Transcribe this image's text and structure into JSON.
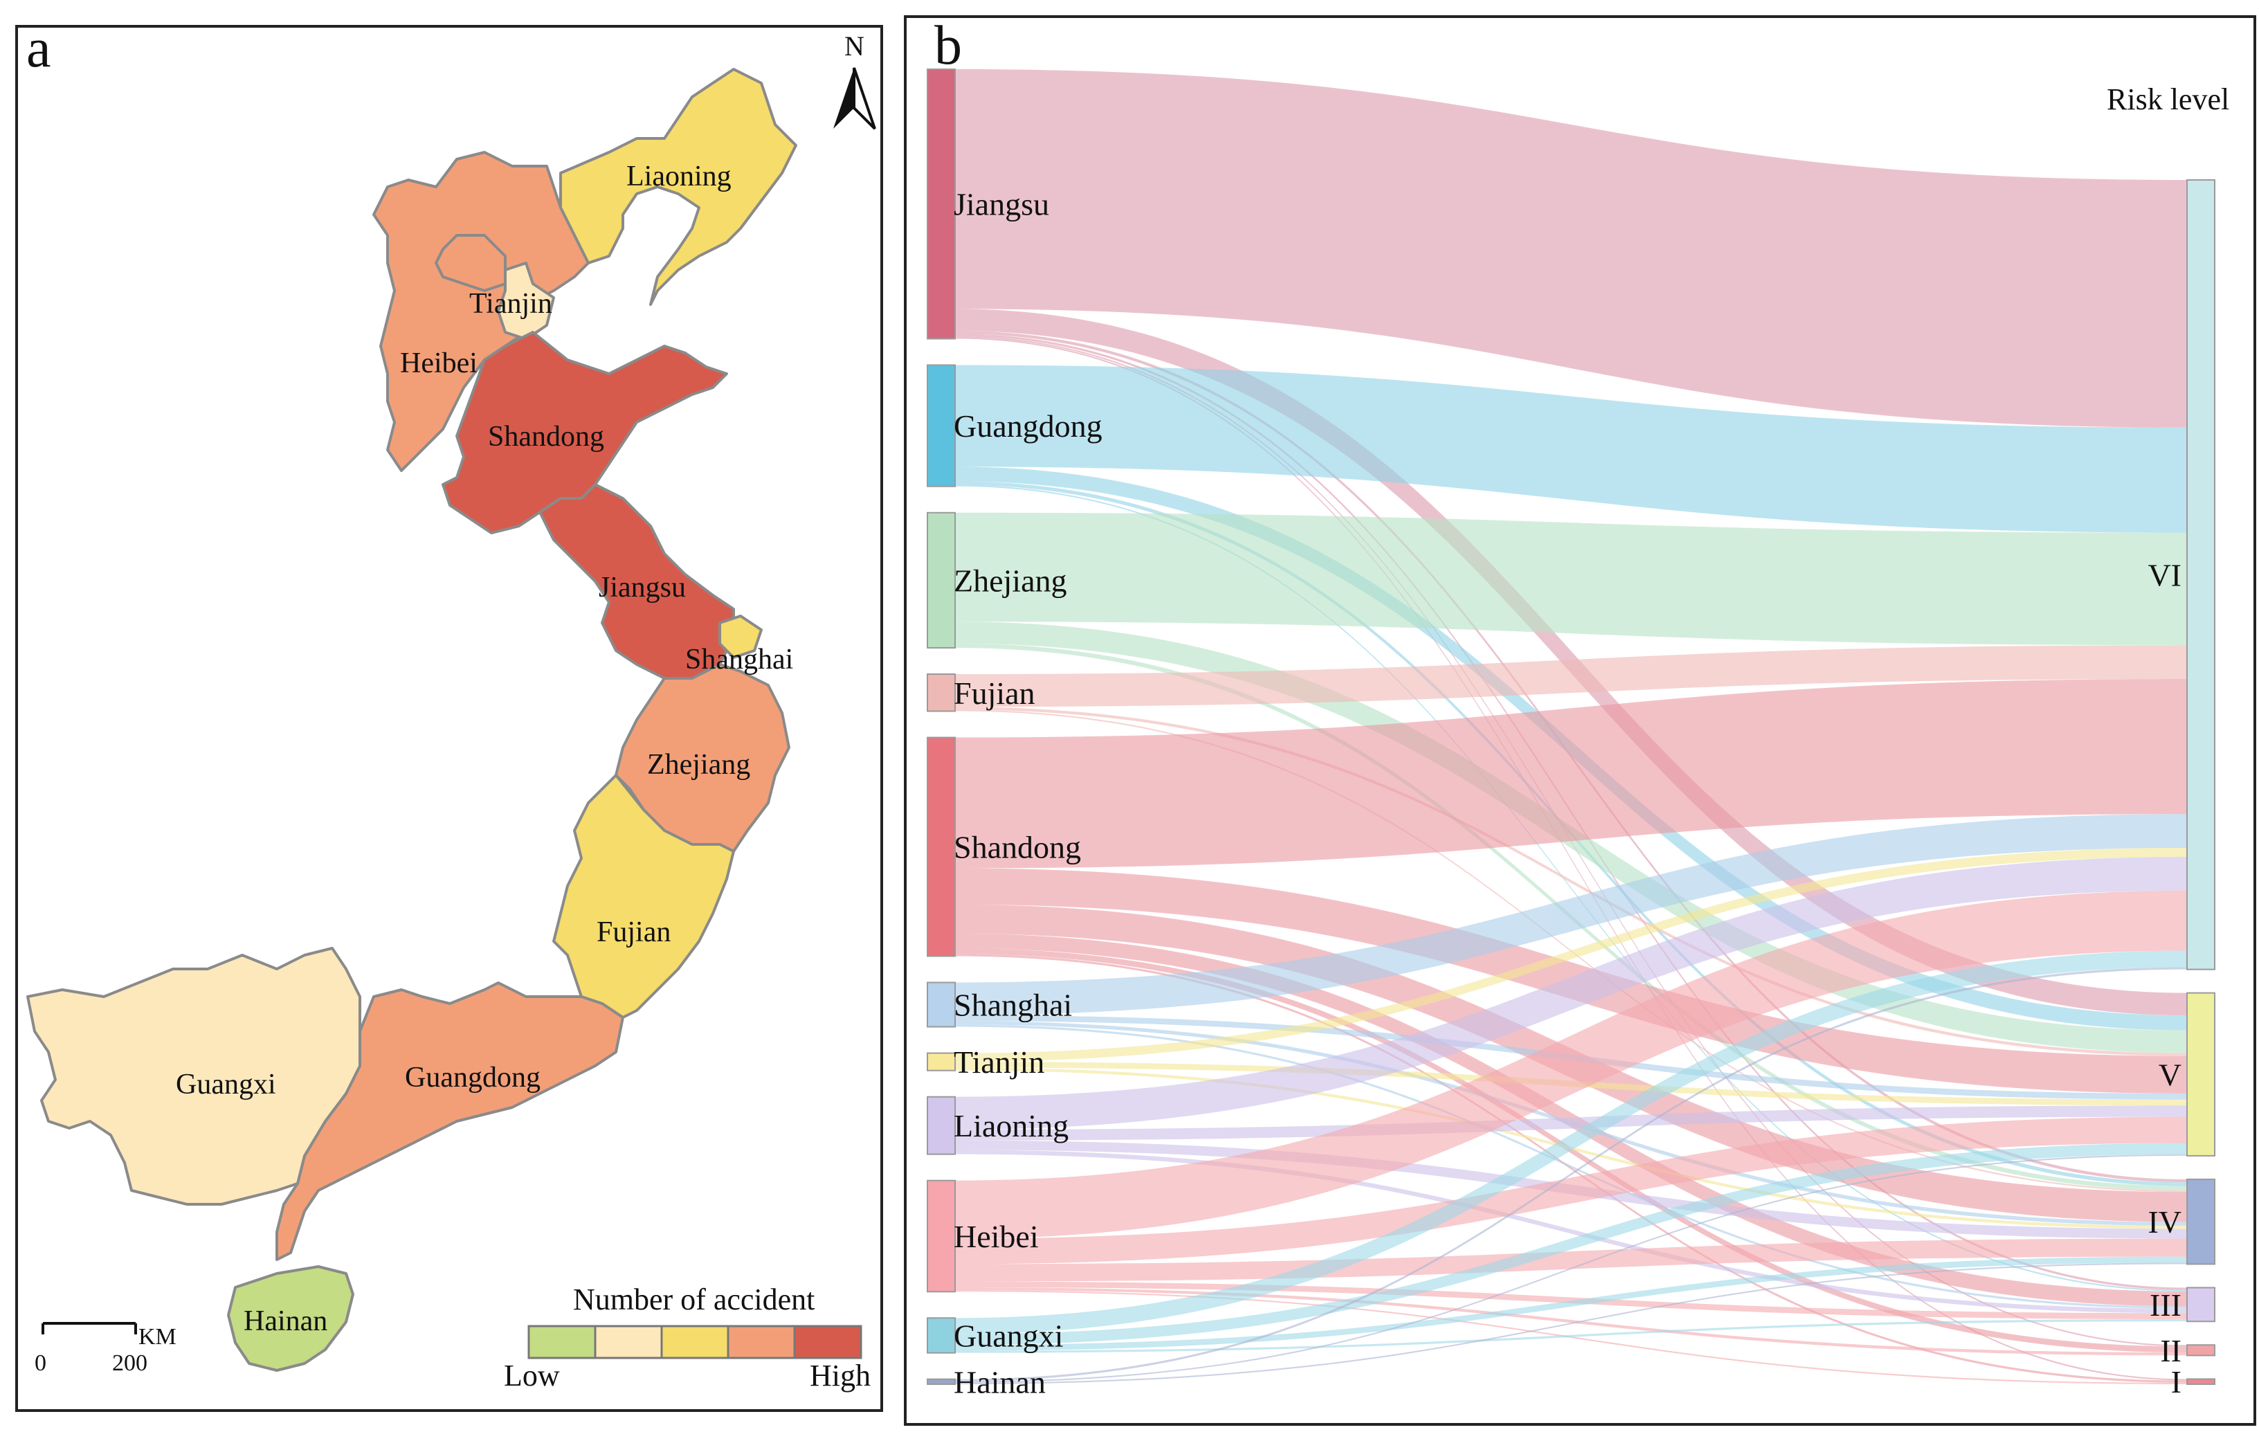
{
  "panel_a": {
    "label": "a",
    "north": "N",
    "scale": {
      "unit": "KM",
      "start": "0",
      "end": "200"
    },
    "legend": {
      "title": "Number of accident",
      "low": "Low",
      "high": "High",
      "colors": [
        "#c4dc84",
        "#fde8bc",
        "#f6dc6a",
        "#f29f78",
        "#d75b4c"
      ]
    },
    "provinces": [
      {
        "name": "Liaoning",
        "level": 3,
        "color": "#f6dc6a"
      },
      {
        "name": "Tianjin",
        "level": 2,
        "color": "#fde8bc"
      },
      {
        "name": "Heibei",
        "level": 4,
        "color": "#f29f78"
      },
      {
        "name": "Shandong",
        "level": 5,
        "color": "#d75b4c"
      },
      {
        "name": "Jiangsu",
        "level": 5,
        "color": "#d75b4c"
      },
      {
        "name": "Shanghai",
        "level": 3,
        "color": "#f6dc6a"
      },
      {
        "name": "Zhejiang",
        "level": 4,
        "color": "#f29f78"
      },
      {
        "name": "Fujian",
        "level": 3,
        "color": "#f6dc6a"
      },
      {
        "name": "Guangxi",
        "level": 2,
        "color": "#fde8bc"
      },
      {
        "name": "Guangdong",
        "level": 4,
        "color": "#f29f78"
      },
      {
        "name": "Hainan",
        "level": 1,
        "color": "#c4dc84"
      }
    ]
  },
  "panel_b": {
    "label": "b",
    "target_title": "Risk level",
    "sources": [
      {
        "name": "Jiangsu",
        "color": "#d4687e",
        "flow_color": "#dc9aab"
      },
      {
        "name": "Guangdong",
        "color": "#5bc1df",
        "flow_color": "#8fd2e6"
      },
      {
        "name": "Zhejiang",
        "color": "#b8e0c0",
        "flow_color": "#b6e1c4"
      },
      {
        "name": "Fujian",
        "color": "#eeb8b4",
        "flow_color": "#eeb8b4"
      },
      {
        "name": "Shandong",
        "color": "#e8747e",
        "flow_color": "#ea97a0"
      },
      {
        "name": "Shanghai",
        "color": "#b6d2ec",
        "flow_color": "#aacde9"
      },
      {
        "name": "Tianjin",
        "color": "#f8e89a",
        "flow_color": "#f4e692"
      },
      {
        "name": "Liaoning",
        "color": "#d2c6ec",
        "flow_color": "#cbbfe8"
      },
      {
        "name": "Heibei",
        "color": "#f6a6ac",
        "flow_color": "#f3a9ae"
      },
      {
        "name": "Guangxi",
        "color": "#8ed2e2",
        "flow_color": "#9fd9e8"
      },
      {
        "name": "Hainan",
        "color": "#9aa6c6",
        "flow_color": "#aab4d2"
      }
    ],
    "targets": [
      {
        "name": "VI",
        "color": "#c9e8ea"
      },
      {
        "name": "V",
        "color": "#eef0a0"
      },
      {
        "name": "IV",
        "color": "#9fb0d6"
      },
      {
        "name": "III",
        "color": "#d9cdef"
      },
      {
        "name": "II",
        "color": "#f1a4a6"
      },
      {
        "name": "I",
        "color": "#e88a92"
      }
    ],
    "flows": [
      {
        "source": "Jiangsu",
        "target": "VI",
        "value": 33
      },
      {
        "source": "Jiangsu",
        "target": "V",
        "value": 3
      },
      {
        "source": "Jiangsu",
        "target": "IV",
        "value": 0.4
      },
      {
        "source": "Jiangsu",
        "target": "III",
        "value": 0.3
      },
      {
        "source": "Jiangsu",
        "target": "II",
        "value": 0.2
      },
      {
        "source": "Jiangsu",
        "target": "I",
        "value": 0.2
      },
      {
        "source": "Guangdong",
        "target": "VI",
        "value": 14
      },
      {
        "source": "Guangdong",
        "target": "V",
        "value": 2
      },
      {
        "source": "Guangdong",
        "target": "IV",
        "value": 0.5
      },
      {
        "source": "Guangdong",
        "target": "III",
        "value": 0.2
      },
      {
        "source": "Zhejiang",
        "target": "VI",
        "value": 15
      },
      {
        "source": "Zhejiang",
        "target": "V",
        "value": 3
      },
      {
        "source": "Zhejiang",
        "target": "IV",
        "value": 0.6
      },
      {
        "source": "Fujian",
        "target": "VI",
        "value": 4.5
      },
      {
        "source": "Fujian",
        "target": "V",
        "value": 0.4
      },
      {
        "source": "Fujian",
        "target": "IV",
        "value": 0.2
      },
      {
        "source": "Shandong",
        "target": "VI",
        "value": 18
      },
      {
        "source": "Shandong",
        "target": "V",
        "value": 5
      },
      {
        "source": "Shandong",
        "target": "IV",
        "value": 4
      },
      {
        "source": "Shandong",
        "target": "III",
        "value": 2
      },
      {
        "source": "Shandong",
        "target": "II",
        "value": 0.8
      },
      {
        "source": "Shandong",
        "target": "I",
        "value": 0.3
      },
      {
        "source": "Shanghai",
        "target": "VI",
        "value": 4.5
      },
      {
        "source": "Shanghai",
        "target": "V",
        "value": 0.8
      },
      {
        "source": "Shanghai",
        "target": "IV",
        "value": 0.5
      },
      {
        "source": "Shanghai",
        "target": "III",
        "value": 0.3
      },
      {
        "source": "Tianjin",
        "target": "VI",
        "value": 1.2
      },
      {
        "source": "Tianjin",
        "target": "V",
        "value": 0.8
      },
      {
        "source": "Tianjin",
        "target": "IV",
        "value": 0.4
      },
      {
        "source": "Liaoning",
        "target": "VI",
        "value": 4.5
      },
      {
        "source": "Liaoning",
        "target": "V",
        "value": 1.5
      },
      {
        "source": "Liaoning",
        "target": "IV",
        "value": 1.3
      },
      {
        "source": "Liaoning",
        "target": "III",
        "value": 0.6
      },
      {
        "source": "Heibei",
        "target": "VI",
        "value": 8
      },
      {
        "source": "Heibei",
        "target": "V",
        "value": 3.5
      },
      {
        "source": "Heibei",
        "target": "IV",
        "value": 2.4
      },
      {
        "source": "Heibei",
        "target": "III",
        "value": 0.8
      },
      {
        "source": "Heibei",
        "target": "II",
        "value": 0.4
      },
      {
        "source": "Heibei",
        "target": "I",
        "value": 0.2
      },
      {
        "source": "Guangxi",
        "target": "VI",
        "value": 2.2
      },
      {
        "source": "Guangxi",
        "target": "V",
        "value": 1.5
      },
      {
        "source": "Guangxi",
        "target": "IV",
        "value": 0.8
      },
      {
        "source": "Guangxi",
        "target": "III",
        "value": 0.3
      },
      {
        "source": "Hainan",
        "target": "VI",
        "value": 0.3
      },
      {
        "source": "Hainan",
        "target": "V",
        "value": 0.2
      },
      {
        "source": "Hainan",
        "target": "IV",
        "value": 0.2
      }
    ]
  }
}
